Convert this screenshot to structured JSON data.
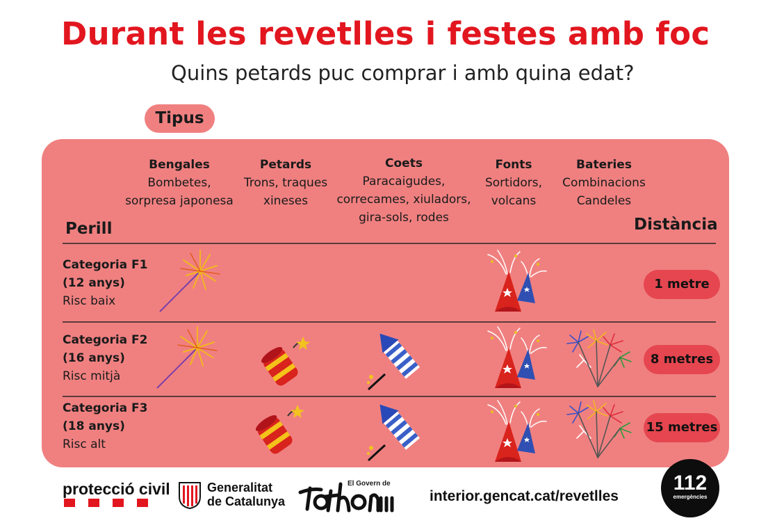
{
  "header": {
    "title": "Durant les revetlles i festes amb foc",
    "subtitle": "Quins petards puc comprar i amb quina edat?"
  },
  "tipus_label": "Tipus",
  "types": [
    {
      "name": "Bengales",
      "desc1": "Bombetes,",
      "desc2": "sorpresa japonesa",
      "desc3": ""
    },
    {
      "name": "Petards",
      "desc1": "Trons, traques",
      "desc2": "xineses",
      "desc3": ""
    },
    {
      "name": "Coets",
      "desc1": "Paracaigudes,",
      "desc2": "correcames, xiuladors,",
      "desc3": "gira-sols, rodes"
    },
    {
      "name": "Fonts",
      "desc1": "Sortidors,",
      "desc2": "volcans",
      "desc3": ""
    },
    {
      "name": "Bateries",
      "desc1": "Combinacions",
      "desc2": "Candeles",
      "desc3": ""
    }
  ],
  "perill_label": "Perill",
  "distancia_label": "Distància",
  "categories": [
    {
      "name": "Categoria F1",
      "age": "(12 anys)",
      "risk": "Risc baix",
      "distance": "1 metre",
      "allowed": [
        "bengales",
        "fonts"
      ]
    },
    {
      "name": "Categoria F2",
      "age": "(16 anys)",
      "risk": "Risc mitjà",
      "distance": "8 metres",
      "allowed": [
        "bengales",
        "petards",
        "coets",
        "fonts",
        "bateries"
      ]
    },
    {
      "name": "Categoria F3",
      "age": "(18 anys)",
      "risk": "Risc alt",
      "distance": "15 metres",
      "allowed": [
        "petards",
        "coets",
        "fonts",
        "bateries"
      ]
    }
  ],
  "icons": {
    "bengales": "sparkler-icon",
    "petards": "firecracker-icon",
    "coets": "rocket-icon",
    "fonts": "fountain-icon",
    "bateries": "fireworks-battery-icon"
  },
  "footer": {
    "proteccio": "protecció civil",
    "generalitat_line1": "Generalitat",
    "generalitat_line2": "de Catalunya",
    "govern_small": "El Govern de",
    "tothom": "Tothom",
    "url": "interior.gencat.cat/revetlles",
    "emergency_number": "112",
    "emergency_label": "emergències"
  },
  "colors": {
    "title_red": "#e2161f",
    "panel_pink": "#f08080",
    "distance_pill": "#e5464f"
  }
}
